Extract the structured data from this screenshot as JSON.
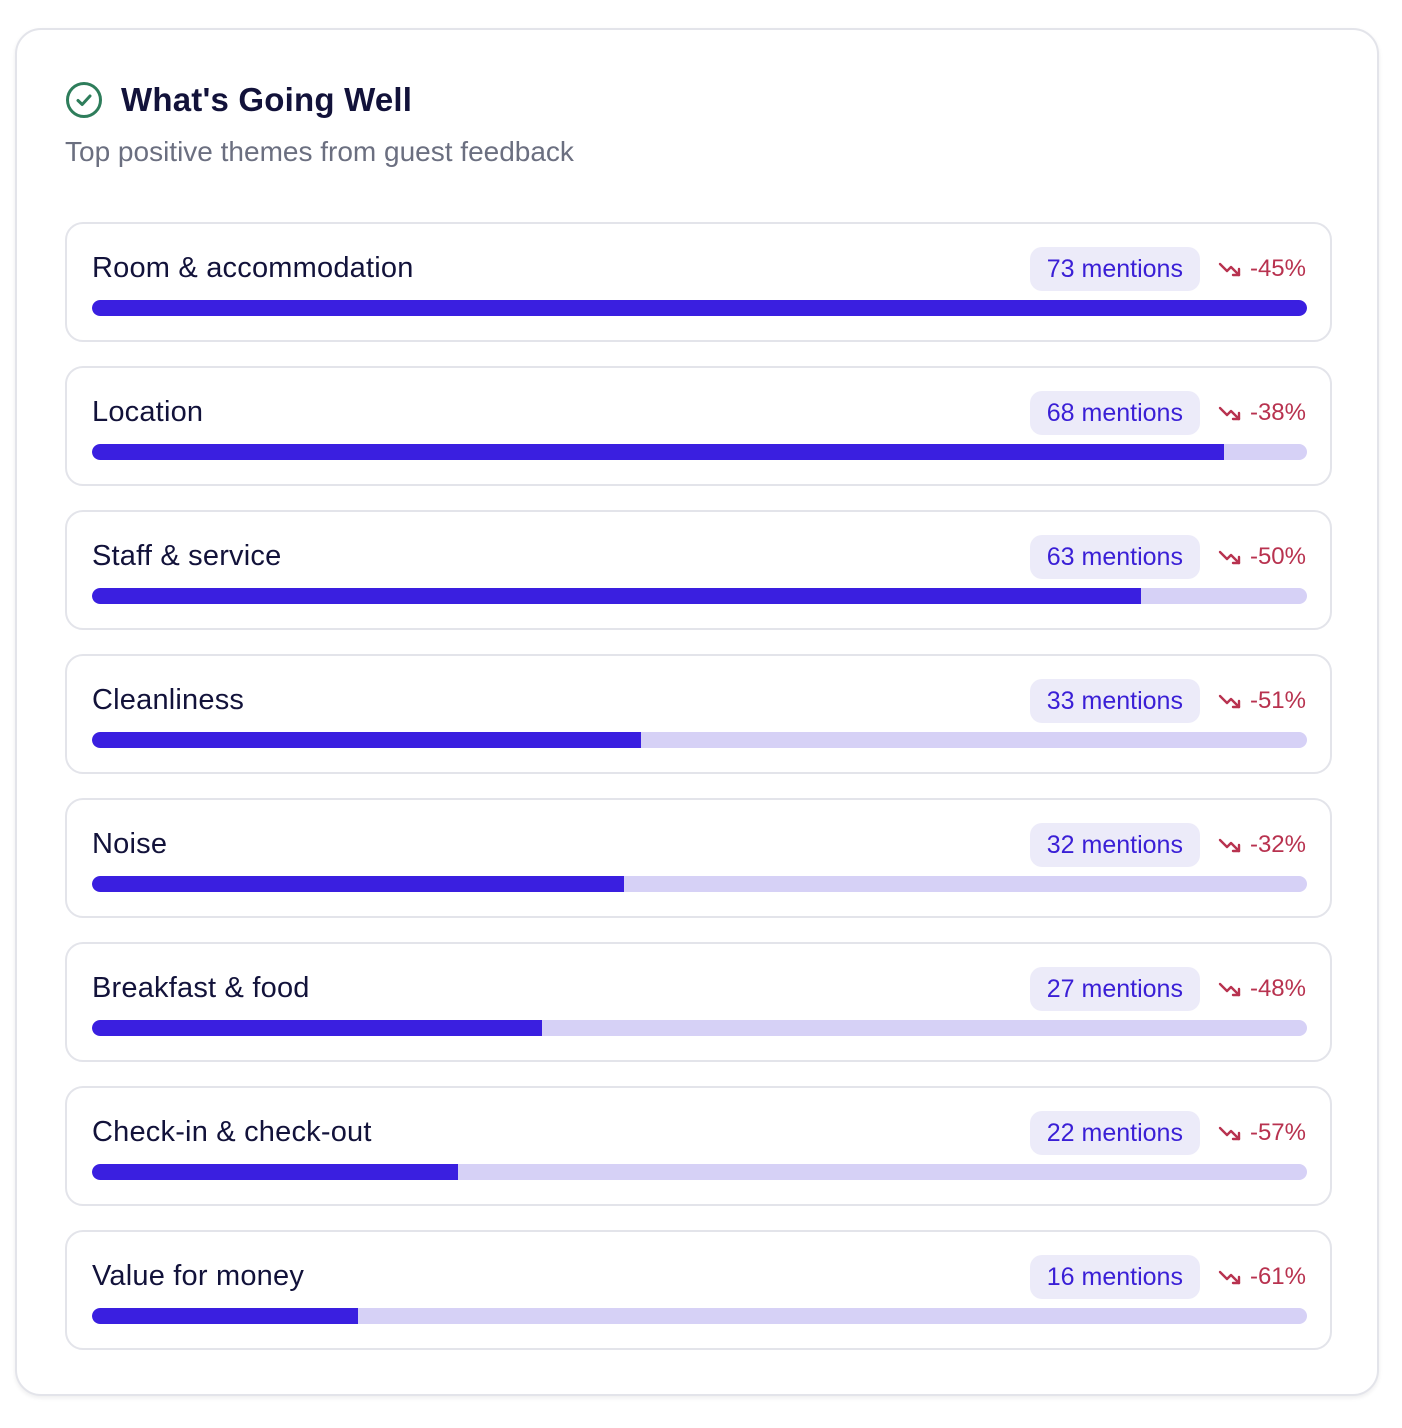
{
  "header": {
    "title": "What's Going Well",
    "subtitle": "Top positive themes from guest feedback",
    "icon": "check-circle-icon"
  },
  "colors": {
    "accent": "#3a1fe0",
    "track": "#d6d1f6",
    "badge_bg": "#ecebf9",
    "badge_text": "#3a1fd6",
    "trend_negative": "#b8324f",
    "check_icon": "#2e7d5b"
  },
  "themes": [
    {
      "name": "Room & accommodation",
      "mentions": "73 mentions",
      "trend": "-45%",
      "trend_icon": "trending-down-icon",
      "fill": 1.0
    },
    {
      "name": "Location",
      "mentions": "68 mentions",
      "trend": "-38%",
      "trend_icon": "trending-down-icon",
      "fill": 0.932
    },
    {
      "name": "Staff & service",
      "mentions": "63 mentions",
      "trend": "-50%",
      "trend_icon": "trending-down-icon",
      "fill": 0.863
    },
    {
      "name": "Cleanliness",
      "mentions": "33 mentions",
      "trend": "-51%",
      "trend_icon": "trending-down-icon",
      "fill": 0.452
    },
    {
      "name": "Noise",
      "mentions": "32 mentions",
      "trend": "-32%",
      "trend_icon": "trending-down-icon",
      "fill": 0.438
    },
    {
      "name": "Breakfast & food",
      "mentions": "27 mentions",
      "trend": "-48%",
      "trend_icon": "trending-down-icon",
      "fill": 0.37
    },
    {
      "name": "Check-in & check-out",
      "mentions": "22 mentions",
      "trend": "-57%",
      "trend_icon": "trending-down-icon",
      "fill": 0.301
    },
    {
      "name": "Value for money",
      "mentions": "16 mentions",
      "trend": "-61%",
      "trend_icon": "trending-down-icon",
      "fill": 0.219
    }
  ]
}
